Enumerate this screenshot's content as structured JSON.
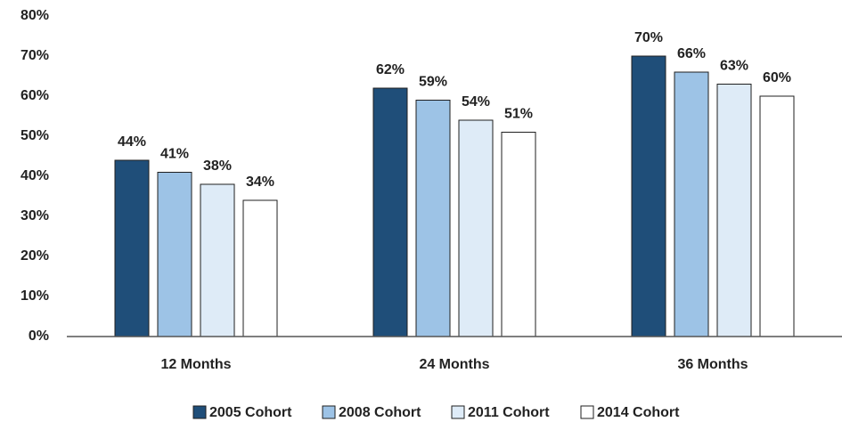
{
  "chart_data": {
    "type": "bar",
    "categories": [
      "12 Months",
      "24 Months",
      "36 Months"
    ],
    "series": [
      {
        "name": "2005 Cohort",
        "color": "#1f4e79",
        "values": [
          44,
          62,
          70
        ],
        "value_labels": [
          "44%",
          "62%",
          "70%"
        ]
      },
      {
        "name": "2008 Cohort",
        "color": "#9dc3e6",
        "values": [
          41,
          59,
          66
        ],
        "value_labels": [
          "41%",
          "59%",
          "66%"
        ]
      },
      {
        "name": "2011 Cohort",
        "color": "#deebf7",
        "values": [
          38,
          54,
          63
        ],
        "value_labels": [
          "38%",
          "54%",
          "63%"
        ]
      },
      {
        "name": "2014 Cohort",
        "color": "#ffffff",
        "values": [
          34,
          51,
          60
        ],
        "value_labels": [
          "34%",
          "51%",
          "60%"
        ]
      }
    ],
    "ylim": [
      0,
      80
    ],
    "yticks": [
      {
        "value": 0,
        "label": "0%"
      },
      {
        "value": 10,
        "label": "10%"
      },
      {
        "value": 20,
        "label": "20%"
      },
      {
        "value": 30,
        "label": "30%"
      },
      {
        "value": 40,
        "label": "40%"
      },
      {
        "value": 50,
        "label": "50%"
      },
      {
        "value": 60,
        "label": "60%"
      },
      {
        "value": 70,
        "label": "70%"
      },
      {
        "value": 80,
        "label": "80%"
      }
    ],
    "grid": false,
    "legend": "bottom"
  }
}
